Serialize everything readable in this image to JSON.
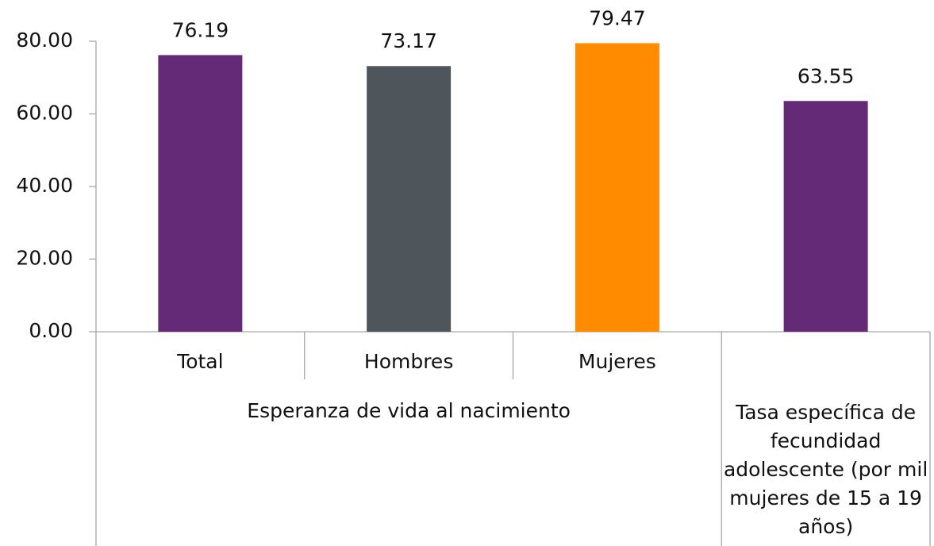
{
  "chart_data": {
    "type": "bar",
    "groups": [
      {
        "label": "Esperanza de vida al nacimiento",
        "categories": [
          "Total",
          "Hombres",
          "Mujeres"
        ]
      },
      {
        "label": "Tasa específica de fecundidad adolescente (por mil mujeres de 15 a 19 años)",
        "categories": [
          null
        ]
      }
    ],
    "values": [
      76.19,
      73.17,
      79.47,
      63.55
    ],
    "colors": [
      "#642a78",
      "#4e555b",
      "#ff8c00",
      "#642a78"
    ],
    "ylim": [
      0,
      80
    ],
    "yticks": [
      {
        "value": 0,
        "label": "0.00"
      },
      {
        "value": 20,
        "label": "20.00"
      },
      {
        "value": 40,
        "label": "40.00"
      },
      {
        "value": 60,
        "label": "60.00"
      },
      {
        "value": 80,
        "label": "80.00"
      }
    ],
    "grid": false
  }
}
